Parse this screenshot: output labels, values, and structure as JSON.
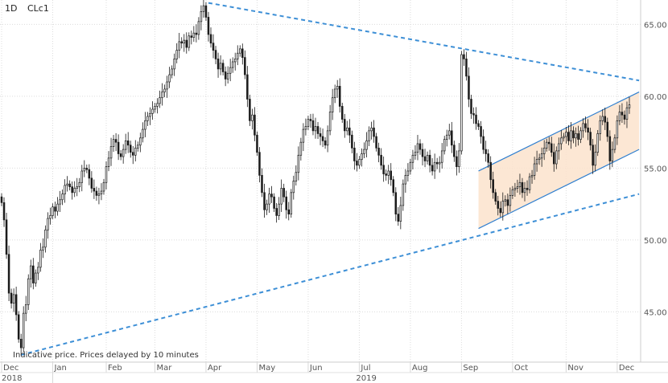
{
  "header": {
    "interval": "1D",
    "symbol": "CLc1"
  },
  "note": "Indicative price. Prices delayed by 10 minutes",
  "colors": {
    "candle": "#1a1a1a",
    "trendline": "#3d8fd6",
    "channel_line": "#2f7fd0",
    "channel_fill": "#fbe3cc",
    "grid": "#dcdcdc",
    "axis_text": "#555555"
  },
  "chart_data": {
    "type": "candlestick",
    "title": "",
    "xlabel": "",
    "ylabel": "",
    "ylim": [
      41.5,
      66.7
    ],
    "y_ticks": [
      "45.00",
      "50.00",
      "55.00",
      "60.00",
      "65.00"
    ],
    "x_ticks": [
      "Dec",
      "Jan",
      "Feb",
      "Mar",
      "Apr",
      "May",
      "Jun",
      "Jul",
      "Aug",
      "Sep",
      "Oct",
      "Nov",
      "Dec"
    ],
    "year_labels": [
      "2018",
      "2019"
    ],
    "y_axis_position": "right",
    "grid": true,
    "closes": [
      52.6,
      51.4,
      49.0,
      46.3,
      45.6,
      46.2,
      44.8,
      43.1,
      42.5,
      44.9,
      45.5,
      47.3,
      48.2,
      47.0,
      47.7,
      48.1,
      49.3,
      49.5,
      50.7,
      51.5,
      51.7,
      52.3,
      52.0,
      52.5,
      52.8,
      53.2,
      53.8,
      53.9,
      53.7,
      53.3,
      53.6,
      53.7,
      54.0,
      54.8,
      55.0,
      54.9,
      54.3,
      53.6,
      53.4,
      53.1,
      53.2,
      53.4,
      54.0,
      55.1,
      55.7,
      56.5,
      57.0,
      56.8,
      56.0,
      55.8,
      56.3,
      56.9,
      56.6,
      56.1,
      55.9,
      56.4,
      56.6,
      57.1,
      57.7,
      58.3,
      58.6,
      58.8,
      59.1,
      59.3,
      59.5,
      59.9,
      60.3,
      60.5,
      61.0,
      61.5,
      61.9,
      62.6,
      63.2,
      63.8,
      63.7,
      63.9,
      63.4,
      64.2,
      64.1,
      64.4,
      64.3,
      65.2,
      65.9,
      66.3,
      65.5,
      64.3,
      63.7,
      63.2,
      62.6,
      61.9,
      62.3,
      61.7,
      61.2,
      61.6,
      62.0,
      62.4,
      62.6,
      63.0,
      63.3,
      62.7,
      61.5,
      59.8,
      58.3,
      58.7,
      57.3,
      56.1,
      54.5,
      53.3,
      52.1,
      52.5,
      53.2,
      53.0,
      52.2,
      51.7,
      52.5,
      53.6,
      53.0,
      52.1,
      51.8,
      53.3,
      54.1,
      54.7,
      55.9,
      56.8,
      57.7,
      57.9,
      58.4,
      58.3,
      57.6,
      57.9,
      57.4,
      57.2,
      56.9,
      56.6,
      57.6,
      58.9,
      59.9,
      60.5,
      60.7,
      59.3,
      58.4,
      57.6,
      57.8,
      57.3,
      56.4,
      55.5,
      55.2,
      55.6,
      56.0,
      56.3,
      56.9,
      57.6,
      57.8,
      57.2,
      56.4,
      55.9,
      55.2,
      54.6,
      54.5,
      54.8,
      54.2,
      53.3,
      51.8,
      51.3,
      52.4,
      53.9,
      54.5,
      54.8,
      55.4,
      55.9,
      56.1,
      56.7,
      56.3,
      55.8,
      55.5,
      55.9,
      55.2,
      54.8,
      55.4,
      55.3,
      55.4,
      56.2,
      57.0,
      57.3,
      57.6,
      56.6,
      55.8,
      55.1,
      56.2,
      62.9,
      62.6,
      61.4,
      59.8,
      58.8,
      58.7,
      58.1,
      57.9,
      57.2,
      56.3,
      56.0,
      55.4,
      54.2,
      53.3,
      52.7,
      52.2,
      51.9,
      52.7,
      52.8,
      52.4,
      53.1,
      53.5,
      53.6,
      53.7,
      54.0,
      53.3,
      53.6,
      53.5,
      54.4,
      54.5,
      55.3,
      55.6,
      55.7,
      56.0,
      56.4,
      56.8,
      56.7,
      56.1,
      55.3,
      56.2,
      56.7,
      57.1,
      57.2,
      57.5,
      56.9,
      57.6,
      57.1,
      57.4,
      57.0,
      57.6,
      58.1,
      57.8,
      57.5,
      56.6,
      55.2,
      56.1,
      57.4,
      58.3,
      58.6,
      58.2,
      57.2,
      55.5,
      56.3,
      57.1,
      58.3,
      58.9,
      58.7,
      58.4,
      59.2,
      59.4
    ]
  },
  "annotations": {
    "trend_top": {
      "from": {
        "i": 85,
        "v": 66.5
      },
      "to": {
        "i": 262,
        "v": 61.1
      }
    },
    "trend_bottom": {
      "from": {
        "i": 8,
        "v": 42.0
      },
      "to": {
        "i": 262,
        "v": 53.2
      }
    },
    "channel_upper": {
      "from": {
        "i": 196,
        "v": 54.8
      },
      "to": {
        "i": 262,
        "v": 60.3
      }
    },
    "channel_lower": {
      "from": {
        "i": 196,
        "v": 50.8
      },
      "to": {
        "i": 262,
        "v": 56.3
      }
    }
  }
}
